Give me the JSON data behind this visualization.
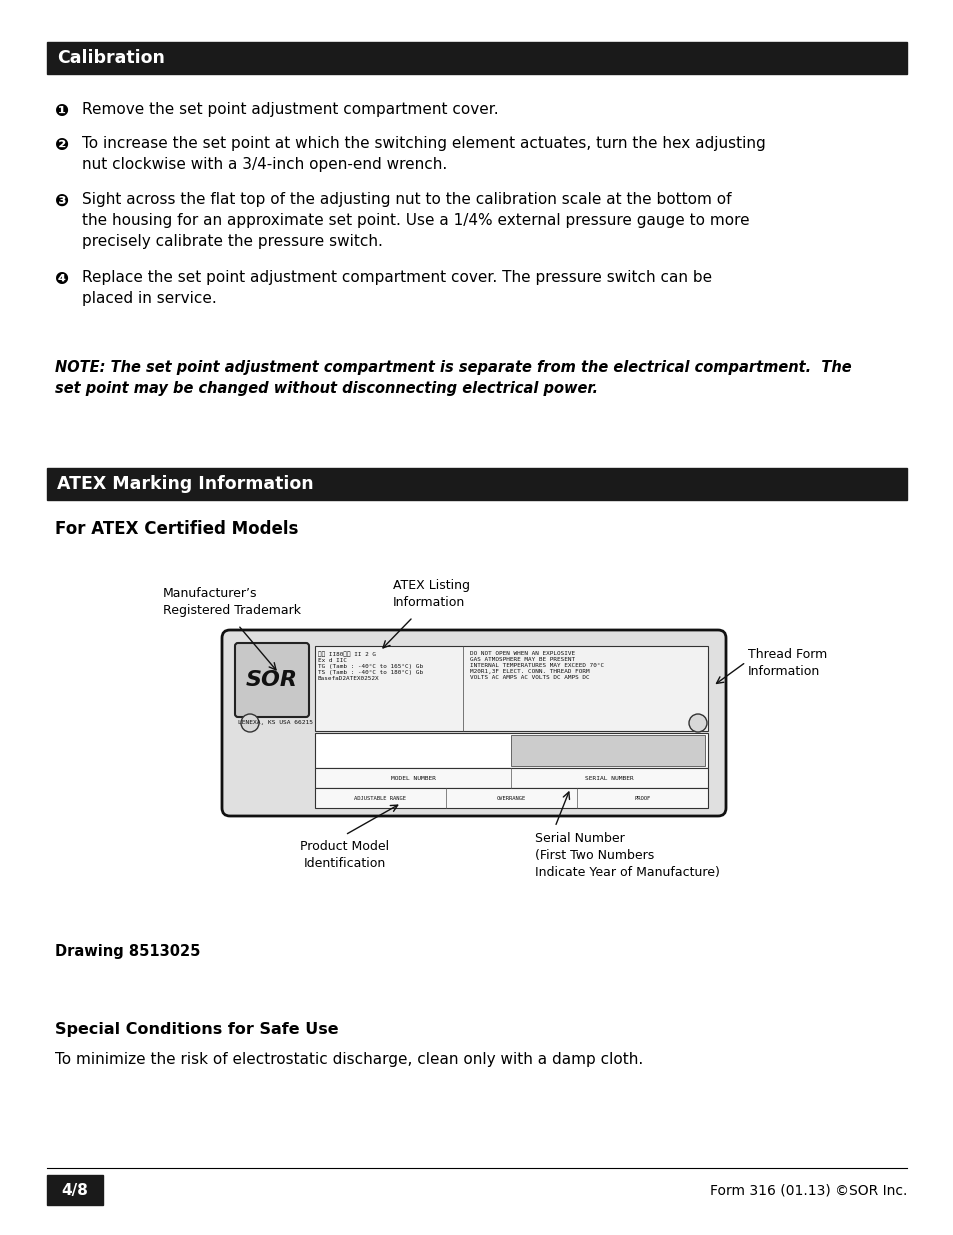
{
  "bg_color": "#ffffff",
  "header_bg": "#1a1a1a",
  "header_text_color": "#ffffff",
  "body_text_color": "#000000",
  "calibration_header": "Calibration",
  "bullet_items": [
    {
      "num": "❶",
      "text": "Remove the set point adjustment compartment cover.",
      "lines": 1
    },
    {
      "num": "❷",
      "text": "To increase the set point at which the switching element actuates, turn the hex adjusting\nnut clockwise with a 3/4-inch open-end wrench.",
      "lines": 2
    },
    {
      "num": "❸",
      "text": "Sight across the flat top of the adjusting nut to the calibration scale at the bottom of\nthe housing for an approximate set point. Use a 1/4% external pressure gauge to more\nprecisely calibrate the pressure switch.",
      "lines": 3
    },
    {
      "num": "❹",
      "text": "Replace the set point adjustment compartment cover. The pressure switch can be\nplaced in service.",
      "lines": 2
    }
  ],
  "note_text": "NOTE: The set point adjustment compartment is separate from the electrical compartment.  The\nset point may be changed without disconnecting electrical power.",
  "atex_header_text": "ATEX Marking Information",
  "atex_subheader": "For ATEX Certified Models",
  "diagram_labels": {
    "manufacturers_trademark": "Manufacturer’s\nRegistered Trademark",
    "atex_listing": "ATEX Listing\nInformation",
    "thread_form": "Thread Form\nInformation",
    "product_model": "Product Model\nIdentification",
    "serial_number": "Serial Number\n(First Two Numbers\nIndicate Year of Manufacture)"
  },
  "drawing_label": "Drawing 8513025",
  "special_conditions_header": "Special Conditions for Safe Use",
  "special_conditions_text": "To minimize the risk of electrostatic discharge, clean only with a damp cloth.",
  "footer_page": "4/8",
  "footer_right": "Form 316 (01.13) ©SOR Inc."
}
